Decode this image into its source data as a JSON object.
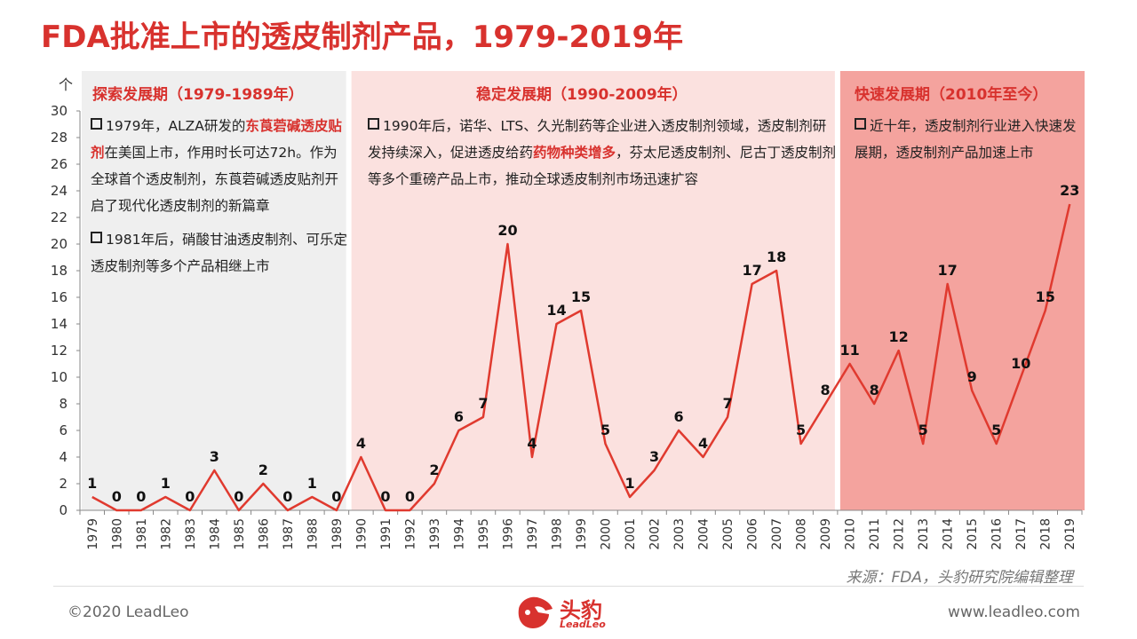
{
  "title": "FDA批准上市的透皮制剂产品，1979-2019年",
  "colors": {
    "accent": "#d8322e",
    "phase1_bg": "#efefef",
    "phase2_bg": "#fbe1df",
    "phase3_bg": "#f4a39e"
  },
  "phases": [
    {
      "heading": "探索发展期（1979-1989年）",
      "notes": [
        {
          "parts": [
            {
              "t": "1979年，ALZA研发的"
            },
            {
              "t": "东莨菪碱透皮贴剂",
              "hl": true
            },
            {
              "t": "在美国上市，作用时长可达72h。作为全球首个透皮制剂，东莨菪碱透皮贴剂开启了现代化透皮制剂的新篇章"
            }
          ]
        },
        {
          "parts": [
            {
              "t": "1981年后，硝酸甘油透皮制剂、可乐定透皮制剂等多个产品相继上市"
            }
          ]
        }
      ]
    },
    {
      "heading": "稳定发展期（1990-2009年）",
      "notes": [
        {
          "parts": [
            {
              "t": "1990年后，诺华、LTS、久光制药等企业进入透皮制剂领域，透皮制剂研发持续深入，促进透皮给药"
            },
            {
              "t": "药物种类增多",
              "hl": true
            },
            {
              "t": "，芬太尼透皮制剂、尼古丁透皮制剂等多个重磅产品上市，推动全球透皮制剂市场迅速扩容"
            }
          ]
        }
      ]
    },
    {
      "heading": "快速发展期（2010年至今）",
      "notes": [
        {
          "parts": [
            {
              "t": "近十年，透皮制剂行业进入快速发展期，透皮制剂产品加速上市"
            }
          ]
        }
      ]
    }
  ],
  "chart_data": {
    "type": "line",
    "unit": "个",
    "categories": [
      "1979",
      "1980",
      "1981",
      "1982",
      "1983",
      "1984",
      "1985",
      "1986",
      "1987",
      "1988",
      "1989",
      "1990",
      "1991",
      "1992",
      "1993",
      "1994",
      "1995",
      "1996",
      "1997",
      "1998",
      "1999",
      "2000",
      "2001",
      "2002",
      "2003",
      "2004",
      "2005",
      "2006",
      "2007",
      "2008",
      "2009",
      "2010",
      "2011",
      "2012",
      "2013",
      "2014",
      "2015",
      "2016",
      "2017",
      "2018",
      "2019"
    ],
    "values": [
      1,
      0,
      0,
      1,
      0,
      3,
      0,
      2,
      0,
      1,
      0,
      4,
      0,
      0,
      2,
      6,
      7,
      20,
      4,
      14,
      15,
      5,
      1,
      3,
      6,
      4,
      7,
      17,
      18,
      5,
      8,
      11,
      8,
      12,
      5,
      17,
      9,
      5,
      10,
      15,
      23
    ],
    "ylim": [
      0,
      30
    ],
    "yticks": [
      0,
      2,
      4,
      6,
      8,
      10,
      12,
      14,
      16,
      18,
      20,
      22,
      24,
      26,
      28,
      30
    ],
    "line_color": "#e03a2f"
  },
  "source": "来源：FDA，头豹研究院编辑整理",
  "footer": {
    "copyright": "©2020 LeadLeo",
    "website": "www.leadleo.com",
    "logo_text": "头豹",
    "logo_sub": "LeadLeo"
  }
}
